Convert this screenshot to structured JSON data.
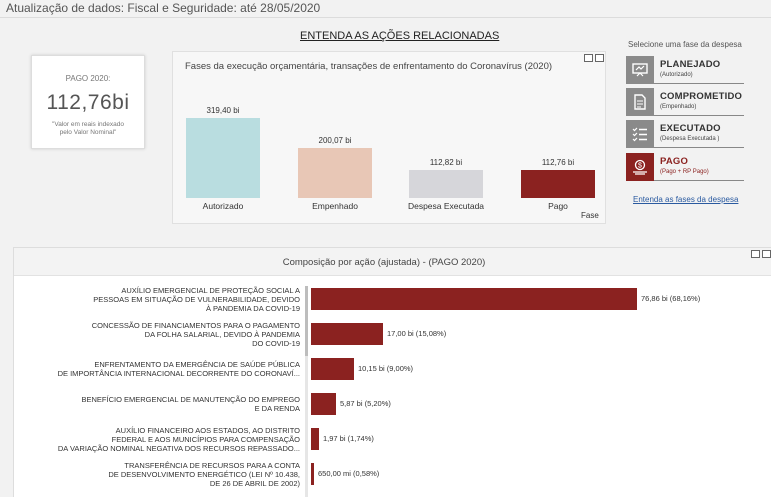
{
  "header": {
    "update_text": "Atualização de dados: Fiscal e Seguridade: até 28/05/2020",
    "related_link": "ENTENDA  AS AÇÕES RELACIONADAS"
  },
  "kpi": {
    "label": "PAGO 2020:",
    "value": "112,76bi",
    "note_line1": "\"Valor em reais indexado",
    "note_line2": "pelo Valor Nominal\""
  },
  "phase_chart": {
    "title": "Fases da execução orçamentária, transações de enfrentamento do Coronavírus (2020)",
    "x_axis_title": "Fase"
  },
  "chart_data": {
    "type": "bar",
    "categories": [
      "Autorizado",
      "Empenhado",
      "Despesa Executada",
      "Pago"
    ],
    "values": [
      319.4,
      200.07,
      112.82,
      112.76
    ],
    "value_labels": [
      "319,40 bi",
      "200,07 bi",
      "112,82 bi",
      "112,76 bi"
    ],
    "colors": [
      "#b9dde0",
      "#e8c7b6",
      "#d6d6da",
      "#8b2220"
    ],
    "xlabel": "Fase",
    "ylabel": "",
    "ylim": [
      0,
      319.4
    ]
  },
  "selector": {
    "title": "Selecione uma fase da despesa",
    "buttons": [
      {
        "main": "PLANEJADO",
        "sub": "(Autorizado)",
        "icon": "presentation-icon"
      },
      {
        "main": "COMPROMETIDO",
        "sub": "(Empenhado)",
        "icon": "document-icon"
      },
      {
        "main": "EXECUTADO",
        "sub": "(Despesa Executada )",
        "icon": "checklist-icon"
      },
      {
        "main": "PAGO",
        "sub": "(Pago + RP Pago)",
        "icon": "money-icon"
      }
    ],
    "active": "PAGO",
    "link": "Entenda as fases da despesa"
  },
  "composition": {
    "title": "Composição por ação (ajustada) - (PAGO 2020)",
    "bar_color": "#8b2220",
    "max_value": 76.86,
    "rows": [
      {
        "lines": [
          "AUXÍLIO EMERGENCIAL DE PROTEÇÃO SOCIAL A",
          "PESSOAS EM SITUAÇÃO DE VULNERABILIDADE, DEVIDO",
          "À PANDEMIA DA COVID-19"
        ],
        "value": 76.86,
        "label": "76,86 bi (68,16%)"
      },
      {
        "lines": [
          "CONCESSÃO DE FINANCIAMENTOS PARA O PAGAMENTO",
          "DA FOLHA SALARIAL, DEVIDO À PANDEMIA",
          "DO COVID-19"
        ],
        "value": 17.0,
        "label": "17,00 bi (15,08%)"
      },
      {
        "lines": [
          "ENFRENTAMENTO DA EMERGÊNCIA DE SAÚDE PÚBLICA",
          "DE IMPORTÂNCIA INTERNACIONAL DECORRENTE DO CORONAVÍ..."
        ],
        "value": 10.15,
        "label": "10,15 bi (9,00%)"
      },
      {
        "lines": [
          "BENEFÍCIO EMERGENCIAL DE MANUTENÇÃO DO EMPREGO",
          "E DA RENDA"
        ],
        "value": 5.87,
        "label": "5,87 bi (5,20%)"
      },
      {
        "lines": [
          "AUXÍLIO FINANCEIRO AOS ESTADOS, AO DISTRITO",
          "FEDERAL E AOS MUNICÍPIOS PARA COMPENSAÇÃO",
          "DA VARIAÇÃO NOMINAL NEGATIVA DOS RECURSOS REPASSADO..."
        ],
        "value": 1.97,
        "label": "1,97 bi (1,74%)"
      },
      {
        "lines": [
          "TRANSFERÊNCIA DE RECURSOS PARA A CONTA",
          "DE DESENVOLVIMENTO ENERGÉTICO (LEI Nº 10.438,",
          "DE 26 DE ABRIL DE 2002)"
        ],
        "value": 0.65,
        "label": "650,00 mi (0,58%)"
      }
    ]
  }
}
